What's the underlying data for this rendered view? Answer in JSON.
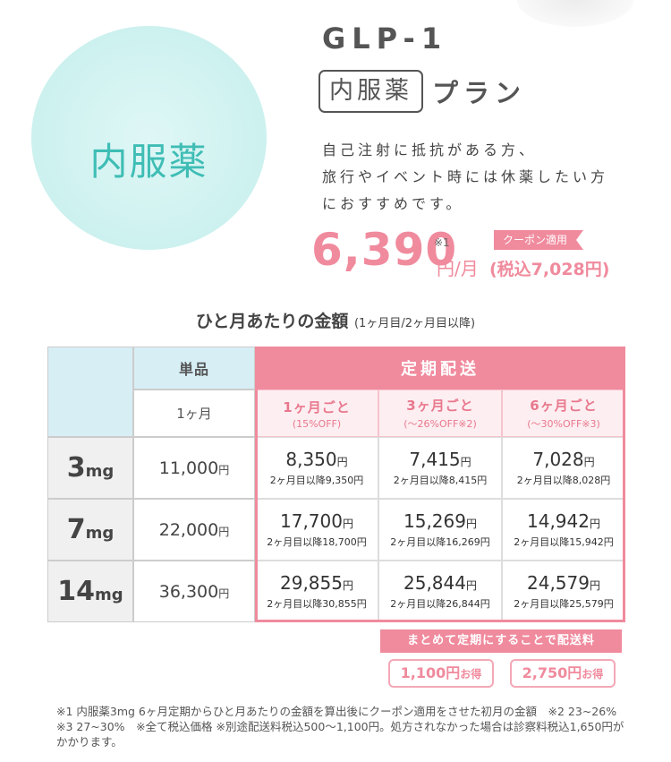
{
  "hero": {
    "circle_label": "内服薬",
    "title": "GLP-1",
    "plan_box": "内服薬",
    "plan_word": "プラン",
    "description": [
      "自己注射に抵抗がある方、",
      "旅行やイベント時には休薬したい方",
      "におすすめです。"
    ],
    "price": "6,390",
    "price_note": "※1",
    "price_unit": "円/月",
    "price_tax": "(税込7,028円)",
    "coupon": "クーポン適用"
  },
  "table": {
    "subtitle": "ひと月あたりの金額",
    "subtitle_note": "(1ヶ月目/2ヶ月目以降)",
    "single_header": "単品",
    "single_sub": "1ヶ月",
    "subscription_header": "定期配送",
    "plans": [
      {
        "label": "1ヶ月ごと",
        "discount": "(15%OFF)"
      },
      {
        "label": "3ヶ月ごと",
        "discount": "(〜26%OFF※2)"
      },
      {
        "label": "6ヶ月ごと",
        "discount": "(〜30%OFF※3)"
      }
    ],
    "yen": "円",
    "after_prefix": "2ヶ月目以降",
    "rows": [
      {
        "dose": "3",
        "unit": "mg",
        "single": "11,000",
        "prices": [
          {
            "first": "8,350",
            "after": "9,350"
          },
          {
            "first": "7,415",
            "after": "8,415"
          },
          {
            "first": "7,028",
            "after": "8,028"
          }
        ]
      },
      {
        "dose": "7",
        "unit": "mg",
        "single": "22,000",
        "prices": [
          {
            "first": "17,700",
            "after": "18,700"
          },
          {
            "first": "15,269",
            "after": "16,269"
          },
          {
            "first": "14,942",
            "after": "15,942"
          }
        ]
      },
      {
        "dose": "14",
        "unit": "mg",
        "single": "36,300",
        "prices": [
          {
            "first": "29,855",
            "after": "30,855"
          },
          {
            "first": "25,844",
            "after": "26,844"
          },
          {
            "first": "24,579",
            "after": "25,579"
          }
        ]
      }
    ]
  },
  "shipping": {
    "banner": "まとめて定期にすることで配送料",
    "savings": [
      {
        "amount": "1,100円",
        "suffix": "お得"
      },
      {
        "amount": "2,750円",
        "suffix": "お得"
      }
    ]
  },
  "footnote": "※1 内服薬3mg 6ヶ月定期からひと月あたりの金額を算出後にクーポン適用をさせた初月の金額　※2 23~26%　※3 27~30%　※全て税込価格 ※別途配送料税込500〜1,100円。処方されなかった場合は診察料税込1,650円がかかります。",
  "colors": {
    "accent_pink": "#f08a9d",
    "teal": "#3fbdb5",
    "light_blue": "#d7eef5"
  }
}
